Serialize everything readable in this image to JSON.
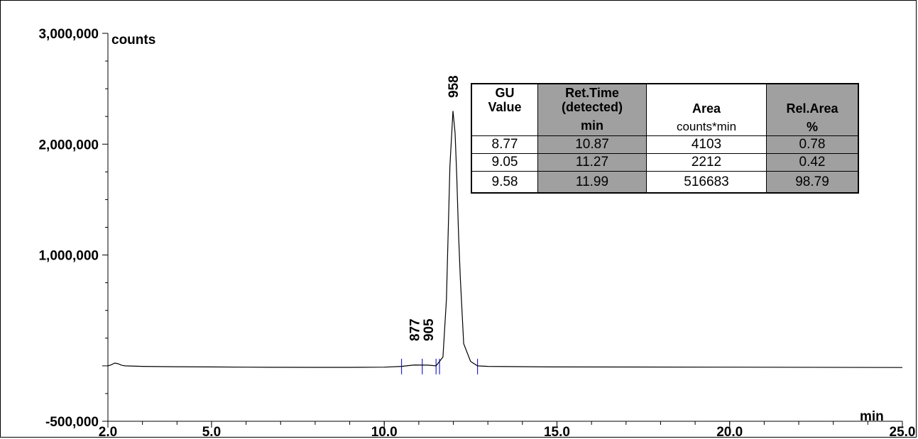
{
  "chart_data": {
    "type": "line",
    "xlabel": "min",
    "ylabel": "counts",
    "xlim": [
      2.0,
      25.0
    ],
    "ylim": [
      -500000,
      3000000
    ],
    "x_ticks": [
      "2.0",
      "5.0",
      "10.0",
      "15.0",
      "20.0",
      "25.0"
    ],
    "y_ticks": [
      "3,000,000",
      "2,000,000",
      "1,000,000",
      "-500,000"
    ],
    "series": [
      {
        "x": [
          2.0,
          2.1,
          2.2,
          2.3,
          2.4,
          2.5,
          3.0,
          4.0,
          5.0,
          6.0,
          7.0,
          8.0,
          9.0,
          10.0,
          10.5,
          10.87,
          11.27,
          11.5,
          11.7,
          11.8,
          11.9,
          11.99,
          12.05,
          12.1,
          12.15,
          12.2,
          12.3,
          12.5,
          12.7,
          13.0,
          15.0,
          20.0,
          25.0
        ],
        "y": [
          0,
          10000,
          25000,
          18000,
          5000,
          0,
          -5000,
          -8000,
          -10000,
          -12000,
          -13000,
          -14000,
          -14000,
          -12000,
          -5000,
          8000,
          6000,
          0,
          80000,
          600000,
          1800000,
          2300000,
          2100000,
          1700000,
          1200000,
          800000,
          200000,
          40000,
          0,
          -5000,
          -10000,
          -12000,
          -15000
        ]
      }
    ],
    "peak_labels": [
      {
        "label": "877",
        "x": 10.87
      },
      {
        "label": "905",
        "x": 11.27
      },
      {
        "label": "958",
        "x": 11.99
      }
    ],
    "integration_marks": [
      10.5,
      11.1,
      11.5,
      11.6,
      12.7
    ],
    "table": {
      "headers": [
        {
          "line1": "GU",
          "line2": "Value",
          "line3": "",
          "unit": ""
        },
        {
          "line1": "Ret.Time",
          "line2": "(detected)",
          "line3": "",
          "unit": "min"
        },
        {
          "line1": "",
          "line2": "",
          "line3": "Area",
          "unit": "counts*min"
        },
        {
          "line1": "",
          "line2": "",
          "line3": "Rel.Area",
          "unit": "%"
        }
      ],
      "rows": [
        [
          "8.77",
          "10.87",
          "4103",
          "0.78"
        ],
        [
          "9.05",
          "11.27",
          "2212",
          "0.42"
        ],
        [
          "9.58",
          "11.99",
          "516683",
          "98.79"
        ]
      ]
    }
  }
}
